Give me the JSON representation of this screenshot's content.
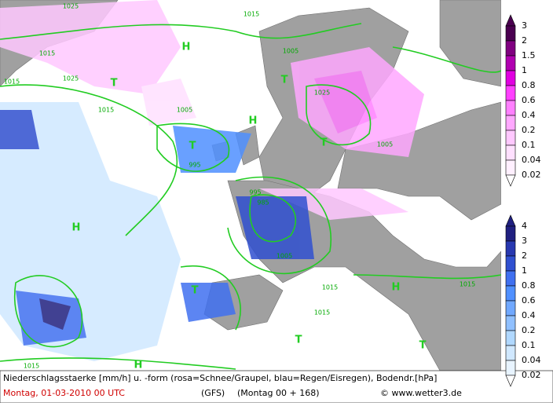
{
  "map": {
    "pressure_labels": [
      "1025",
      "1015",
      "1025",
      "1015",
      "1015",
      "1005",
      "995",
      "1005",
      "1015",
      "1025",
      "995",
      "985",
      "1005",
      "1015",
      "1015",
      "1015",
      "1015",
      "1005",
      "H",
      "T",
      "H",
      "T",
      "T",
      "T",
      "H",
      "T",
      "T",
      "H",
      "T",
      "H"
    ]
  },
  "legend_snow": {
    "values": [
      3,
      2,
      1.5,
      1,
      0.8,
      0.6,
      0.4,
      0.2,
      0.1,
      0.04,
      0.02
    ],
    "colors": [
      "#4a0050",
      "#800080",
      "#b000b0",
      "#e000e0",
      "#ff40ff",
      "#ff80ff",
      "#ffa8ff",
      "#ffc8ff",
      "#ffe0ff",
      "#fff0ff",
      "#ffffff"
    ]
  },
  "legend_rain": {
    "values": [
      4,
      3,
      2,
      1,
      0.8,
      0.6,
      0.4,
      0.2,
      0.1,
      0.04,
      0.02
    ],
    "colors": [
      "#202080",
      "#2838b0",
      "#3050d0",
      "#4070f0",
      "#5090ff",
      "#70a8ff",
      "#90c0ff",
      "#b0d8ff",
      "#d0e8ff",
      "#e8f4ff",
      "#ffffff"
    ]
  },
  "footer": {
    "description": "Niederschlagsstaerke [mm/h] u. -form (rosa=Schnee/Graupel, blau=Regen/Eisregen), Bodendr.[hPa]",
    "date": "Montag, 01-03-2010  00 UTC",
    "model": "(GFS)",
    "run": "(Montag 00 + 168)",
    "credit": "© www.wetter3.de"
  }
}
